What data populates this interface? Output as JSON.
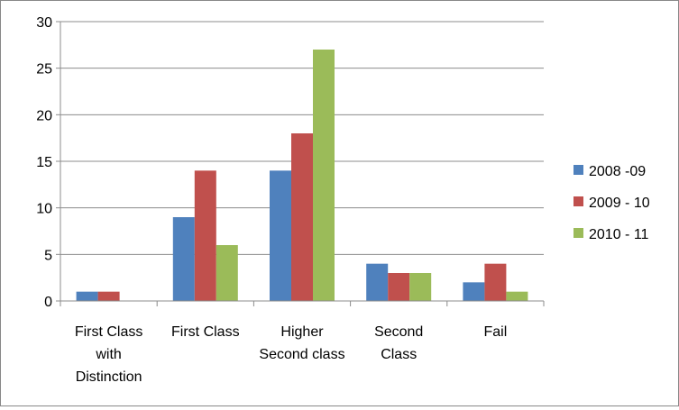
{
  "chart_data": {
    "type": "bar",
    "categories": [
      [
        "First Class",
        "with",
        "Distinction"
      ],
      [
        "First Class"
      ],
      [
        "Higher",
        "Second class"
      ],
      [
        "Second",
        "Class"
      ],
      [
        "Fail"
      ]
    ],
    "series": [
      {
        "name": "2008 -09",
        "color": "#4F81BD",
        "values": [
          1,
          9,
          14,
          4,
          2
        ]
      },
      {
        "name": "2009 - 10",
        "color": "#C0504D",
        "values": [
          1,
          14,
          18,
          3,
          4
        ]
      },
      {
        "name": "2010 - 11",
        "color": "#9BBB59",
        "values": [
          0,
          6,
          27,
          3,
          1
        ]
      }
    ],
    "yticks": [
      "0",
      "5",
      "10",
      "15",
      "20",
      "25",
      "30"
    ],
    "ylim": [
      0,
      30
    ],
    "ytick_step": 5,
    "grid": true,
    "legend": "right"
  }
}
